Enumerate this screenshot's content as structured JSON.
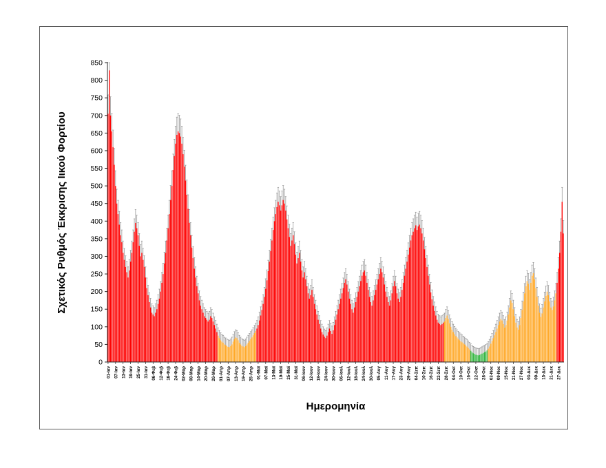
{
  "figure": {
    "y_axis_title": "Σχετικός Ρυθμός Έκκρισης Ιικού Φορτίου",
    "x_axis_title": "Ημερομηνία"
  },
  "chart_data": {
    "type": "bar",
    "title": "",
    "xlabel": "Ημερομηνία",
    "ylabel": "Σχετικός Ρυθμός Έκκρισης Ιικού Φορτίου",
    "ylim": [
      0,
      850
    ],
    "y_ticks": [
      0,
      50,
      100,
      150,
      200,
      250,
      300,
      350,
      400,
      450,
      500,
      550,
      600,
      650,
      700,
      750,
      800,
      850
    ],
    "grid": false,
    "legend": null,
    "x_tick_every_days": 6,
    "x_tick_labels": [
      "01-Ιαν",
      "07-Ιαν",
      "13-Ιαν",
      "19-Ιαν",
      "25-Ιαν",
      "31-Ιαν",
      "06-Φεβ",
      "12-Φεβ",
      "18-Φεβ",
      "24-Φεβ",
      "02-Μαρ",
      "08-Μαρ",
      "14-Μαρ",
      "20-Μαρ",
      "26-Μαρ",
      "01-Απρ",
      "07-Απρ",
      "13-Απρ",
      "19-Απρ",
      "25-Απρ",
      "01-Μαϊ",
      "07-Μαϊ",
      "13-Μαϊ",
      "19-Μαϊ",
      "25-Μαϊ",
      "31-Μαϊ",
      "06-Ιουν",
      "12-Ιουν",
      "18-Ιουν",
      "24-Ιουν",
      "30-Ιουν",
      "06-Ιουλ",
      "12-Ιουλ",
      "18-Ιουλ",
      "24-Ιουλ",
      "30-Ιουλ",
      "05-Αυγ",
      "11-Αυγ",
      "17-Αυγ",
      "23-Αυγ",
      "29-Αυγ",
      "04-Σεπ",
      "10-Σεπ",
      "16-Σεπ",
      "22-Σεπ",
      "28-Σεπ",
      "04-Οκτ",
      "10-Οκτ",
      "16-Οκτ",
      "22-Οκτ",
      "28-Οκτ",
      "03-Νοε",
      "09-Νοε",
      "15-Νοε",
      "21-Νοε",
      "27-Νοε",
      "03-Δεκ",
      "09-Δεκ",
      "15-Δεκ",
      "21-Δεκ",
      "27-Δεκ"
    ],
    "values": [
      705,
      828,
      700,
      655,
      610,
      560,
      500,
      450,
      420,
      390,
      360,
      340,
      310,
      290,
      270,
      255,
      240,
      260,
      285,
      310,
      340,
      370,
      395,
      380,
      360,
      330,
      300,
      310,
      290,
      270,
      240,
      210,
      190,
      170,
      155,
      140,
      135,
      130,
      140,
      150,
      165,
      180,
      200,
      225,
      250,
      280,
      310,
      345,
      380,
      420,
      460,
      500,
      545,
      585,
      620,
      645,
      655,
      650,
      640,
      620,
      590,
      555,
      515,
      475,
      435,
      395,
      360,
      325,
      295,
      265,
      240,
      215,
      195,
      175,
      160,
      150,
      140,
      130,
      125,
      120,
      115,
      120,
      130,
      125,
      115,
      105,
      95,
      85,
      75,
      68,
      62,
      58,
      55,
      50,
      48,
      45,
      43,
      42,
      45,
      50,
      58,
      65,
      70,
      68,
      62,
      55,
      50,
      46,
      44,
      42,
      45,
      50,
      55,
      60,
      65,
      70,
      76,
      82,
      88,
      95,
      105,
      118,
      132,
      148,
      165,
      185,
      208,
      232,
      258,
      285,
      315,
      345,
      375,
      400,
      420,
      440,
      455,
      445,
      430,
      445,
      460,
      450,
      430,
      405,
      380,
      355,
      330,
      345,
      360,
      335,
      305,
      280,
      295,
      310,
      285,
      260,
      240,
      255,
      235,
      215,
      195,
      180,
      190,
      205,
      185,
      165,
      150,
      135,
      120,
      108,
      95,
      85,
      78,
      72,
      68,
      75,
      85,
      95,
      88,
      80,
      90,
      105,
      120,
      135,
      150,
      165,
      180,
      195,
      210,
      225,
      235,
      220,
      200,
      180,
      165,
      150,
      140,
      155,
      170,
      185,
      200,
      215,
      230,
      245,
      255,
      260,
      245,
      225,
      205,
      185,
      170,
      160,
      175,
      190,
      205,
      220,
      235,
      250,
      265,
      255,
      240,
      220,
      200,
      185,
      170,
      160,
      175,
      195,
      215,
      230,
      215,
      195,
      180,
      170,
      185,
      205,
      225,
      245,
      265,
      285,
      305,
      325,
      345,
      360,
      370,
      380,
      388,
      375,
      385,
      390,
      380,
      365,
      345,
      320,
      295,
      270,
      245,
      220,
      198,
      178,
      160,
      145,
      132,
      120,
      112,
      108,
      105,
      108,
      112,
      115,
      125,
      132,
      122,
      110,
      100,
      92,
      85,
      79,
      74,
      70,
      66,
      62,
      59,
      56,
      53,
      50,
      47,
      44,
      40,
      36,
      32,
      28,
      25,
      23,
      21,
      20,
      19,
      20,
      22,
      24,
      26,
      28,
      30,
      33,
      38,
      44,
      52,
      60,
      68,
      76,
      85,
      95,
      105,
      115,
      122,
      118,
      108,
      98,
      105,
      118,
      135,
      155,
      175,
      168,
      150,
      130,
      112,
      98,
      92,
      105,
      125,
      148,
      172,
      195,
      215,
      230,
      222,
      205,
      225,
      245,
      252,
      235,
      210,
      185,
      160,
      140,
      128,
      138,
      155,
      172,
      188,
      200,
      190,
      172,
      155,
      148,
      158,
      175,
      195,
      225,
      265,
      310,
      370,
      455,
      365
    ],
    "zones": [
      {
        "from": 0,
        "to": 87,
        "color": "red"
      },
      {
        "from": 88,
        "to": 118,
        "color": "orange"
      },
      {
        "from": 119,
        "to": 268,
        "color": "red"
      },
      {
        "from": 269,
        "to": 289,
        "color": "orange"
      },
      {
        "from": 290,
        "to": 303,
        "color": "green"
      },
      {
        "from": 304,
        "to": 358,
        "color": "orange"
      },
      {
        "from": 359,
        "to": 364,
        "color": "red"
      }
    ],
    "colors": {
      "red": "#fe0000",
      "orange": "#ffa826",
      "green": "#33b540",
      "error_bar": "#8f8f8f",
      "axis": "#262626"
    },
    "error_bars": {
      "direction": "plus",
      "base": 18,
      "fraction": 0.05,
      "clip_at": 850
    }
  }
}
